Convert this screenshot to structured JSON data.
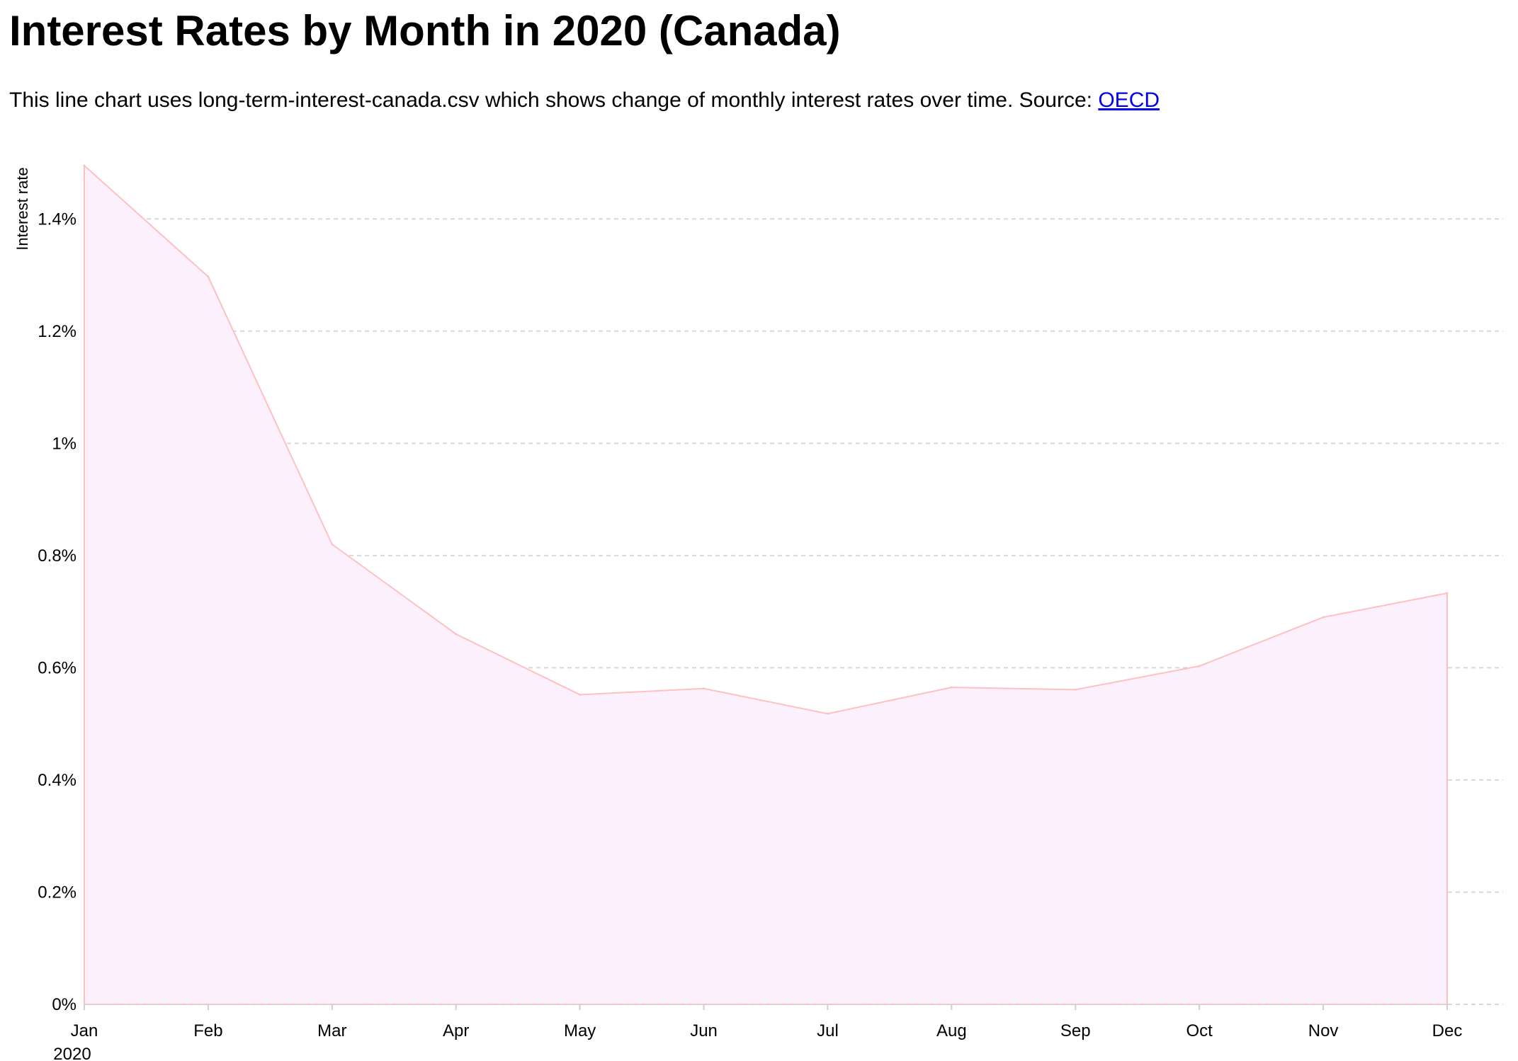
{
  "header": {
    "title": "Interest Rates by Month in 2020 (Canada)",
    "description_prefix": "This line chart uses long-term-interest-canada.csv which shows change of monthly interest rates over time. Source: ",
    "source_link_label": "OECD"
  },
  "colors": {
    "area_fill": "#fdf0fd",
    "line_stroke": "#ffc0c0",
    "grid": "#d8d8d8",
    "link": "#0000ee"
  },
  "chart_data": {
    "type": "area",
    "ylabel": "Interest rate",
    "x_year_label": "2020",
    "x": [
      "Jan",
      "Feb",
      "Mar",
      "Apr",
      "May",
      "Jun",
      "Jul",
      "Aug",
      "Sep",
      "Oct",
      "Nov",
      "Dec"
    ],
    "series": [
      {
        "values": [
          1.495,
          1.297,
          0.82,
          0.66,
          0.552,
          0.563,
          0.518,
          0.565,
          0.561,
          0.603,
          0.69,
          0.733
        ]
      }
    ],
    "ylim": [
      0,
      1.5
    ],
    "yticks": [
      0,
      0.2,
      0.4,
      0.6,
      0.8,
      1,
      1.2,
      1.4
    ],
    "ytick_labels": [
      "0%",
      "0.2%",
      "0.4%",
      "0.6%",
      "0.8%",
      "1%",
      "1.2%",
      "1.4%"
    ],
    "grid": true,
    "legend": "none"
  }
}
